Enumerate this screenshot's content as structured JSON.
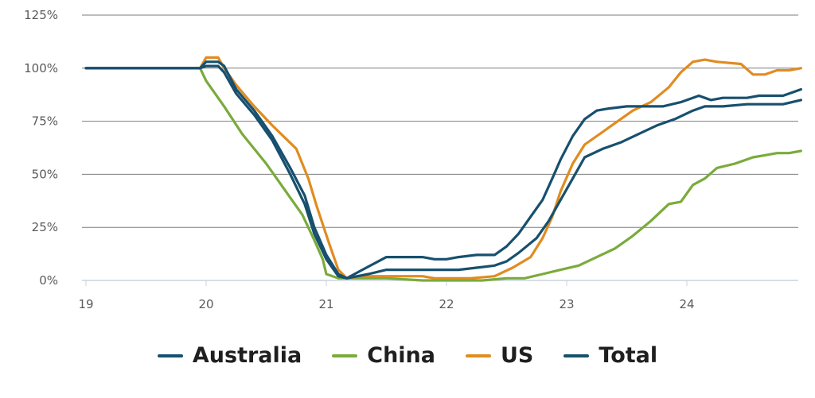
{
  "chart_data": {
    "type": "line",
    "title": "",
    "xlabel": "",
    "ylabel": "",
    "xlim": [
      19,
      24.95
    ],
    "ylim": [
      0,
      125
    ],
    "x_ticks": [
      "19",
      "20",
      "21",
      "22",
      "23",
      "24"
    ],
    "y_ticks": [
      "0%",
      "25%",
      "50%",
      "75%",
      "100%",
      "125%"
    ],
    "grid": "horizontal",
    "legend_position": "bottom",
    "series": [
      {
        "name": "Australia",
        "color": "#17506e",
        "points": [
          [
            19,
            100
          ],
          [
            19.5,
            100
          ],
          [
            19.95,
            100
          ],
          [
            20.0,
            103
          ],
          [
            20.1,
            103
          ],
          [
            20.15,
            101
          ],
          [
            20.25,
            90
          ],
          [
            20.4,
            80
          ],
          [
            20.55,
            68
          ],
          [
            20.7,
            53
          ],
          [
            20.82,
            40
          ],
          [
            20.9,
            25
          ],
          [
            21.0,
            12
          ],
          [
            21.1,
            3
          ],
          [
            21.17,
            1
          ],
          [
            21.3,
            5
          ],
          [
            21.5,
            11
          ],
          [
            21.6,
            11
          ],
          [
            21.8,
            11
          ],
          [
            21.9,
            10
          ],
          [
            22.0,
            10
          ],
          [
            22.1,
            11
          ],
          [
            22.25,
            12
          ],
          [
            22.4,
            12
          ],
          [
            22.5,
            16
          ],
          [
            22.6,
            22
          ],
          [
            22.7,
            30
          ],
          [
            22.8,
            38
          ],
          [
            22.88,
            48
          ],
          [
            22.95,
            57
          ],
          [
            23.05,
            68
          ],
          [
            23.15,
            76
          ],
          [
            23.25,
            80
          ],
          [
            23.35,
            81
          ],
          [
            23.5,
            82
          ],
          [
            23.8,
            82
          ],
          [
            23.95,
            84
          ],
          [
            24.1,
            87
          ],
          [
            24.2,
            85
          ],
          [
            24.3,
            86
          ],
          [
            24.5,
            86
          ],
          [
            24.6,
            87
          ],
          [
            24.8,
            87
          ],
          [
            24.95,
            90
          ]
        ]
      },
      {
        "name": "China",
        "color": "#7aab3b",
        "points": [
          [
            19,
            100
          ],
          [
            19.5,
            100
          ],
          [
            19.95,
            100
          ],
          [
            20.0,
            94
          ],
          [
            20.15,
            82
          ],
          [
            20.3,
            69
          ],
          [
            20.5,
            55
          ],
          [
            20.65,
            43
          ],
          [
            20.8,
            31
          ],
          [
            20.9,
            19
          ],
          [
            20.97,
            10
          ],
          [
            21.0,
            3
          ],
          [
            21.1,
            1
          ],
          [
            21.3,
            1
          ],
          [
            21.5,
            1
          ],
          [
            21.8,
            0
          ],
          [
            22.0,
            0
          ],
          [
            22.3,
            0
          ],
          [
            22.5,
            1
          ],
          [
            22.65,
            1
          ],
          [
            22.8,
            3
          ],
          [
            22.95,
            5
          ],
          [
            23.1,
            7
          ],
          [
            23.25,
            11
          ],
          [
            23.4,
            15
          ],
          [
            23.55,
            21
          ],
          [
            23.7,
            28
          ],
          [
            23.85,
            36
          ],
          [
            23.95,
            37
          ],
          [
            24.05,
            45
          ],
          [
            24.15,
            48
          ],
          [
            24.25,
            53
          ],
          [
            24.4,
            55
          ],
          [
            24.55,
            58
          ],
          [
            24.65,
            59
          ],
          [
            24.75,
            60
          ],
          [
            24.85,
            60
          ],
          [
            24.95,
            61
          ]
        ]
      },
      {
        "name": "US",
        "color": "#e08c21",
        "points": [
          [
            19,
            100
          ],
          [
            19.5,
            100
          ],
          [
            19.95,
            100
          ],
          [
            20.0,
            105
          ],
          [
            20.1,
            105
          ],
          [
            20.15,
            100
          ],
          [
            20.25,
            92
          ],
          [
            20.4,
            82
          ],
          [
            20.55,
            73
          ],
          [
            20.75,
            62
          ],
          [
            20.85,
            48
          ],
          [
            20.92,
            35
          ],
          [
            21.02,
            18
          ],
          [
            21.1,
            5
          ],
          [
            21.17,
            1
          ],
          [
            21.3,
            2
          ],
          [
            21.5,
            2
          ],
          [
            21.8,
            2
          ],
          [
            21.9,
            1
          ],
          [
            22.2,
            1
          ],
          [
            22.4,
            2
          ],
          [
            22.55,
            6
          ],
          [
            22.7,
            11
          ],
          [
            22.8,
            20
          ],
          [
            22.88,
            30
          ],
          [
            22.95,
            42
          ],
          [
            23.05,
            55
          ],
          [
            23.15,
            64
          ],
          [
            23.3,
            70
          ],
          [
            23.45,
            76
          ],
          [
            23.55,
            80
          ],
          [
            23.7,
            84
          ],
          [
            23.85,
            91
          ],
          [
            23.95,
            98
          ],
          [
            24.05,
            103
          ],
          [
            24.15,
            104
          ],
          [
            24.25,
            103
          ],
          [
            24.45,
            102
          ],
          [
            24.55,
            97
          ],
          [
            24.65,
            97
          ],
          [
            24.75,
            99
          ],
          [
            24.85,
            99
          ],
          [
            24.95,
            100
          ]
        ]
      },
      {
        "name": "Total",
        "color": "#17506e",
        "points": [
          [
            19,
            100
          ],
          [
            19.5,
            100
          ],
          [
            19.95,
            100
          ],
          [
            20.0,
            101
          ],
          [
            20.1,
            101
          ],
          [
            20.15,
            98
          ],
          [
            20.25,
            88
          ],
          [
            20.4,
            78
          ],
          [
            20.55,
            66
          ],
          [
            20.7,
            50
          ],
          [
            20.82,
            36
          ],
          [
            20.9,
            22
          ],
          [
            21.0,
            10
          ],
          [
            21.1,
            2
          ],
          [
            21.17,
            1
          ],
          [
            21.35,
            3
          ],
          [
            21.5,
            5
          ],
          [
            21.8,
            5
          ],
          [
            22.1,
            5
          ],
          [
            22.25,
            6
          ],
          [
            22.4,
            7
          ],
          [
            22.5,
            9
          ],
          [
            22.6,
            13
          ],
          [
            22.75,
            20
          ],
          [
            22.85,
            28
          ],
          [
            22.95,
            38
          ],
          [
            23.05,
            48
          ],
          [
            23.15,
            58
          ],
          [
            23.3,
            62
          ],
          [
            23.45,
            65
          ],
          [
            23.6,
            69
          ],
          [
            23.75,
            73
          ],
          [
            23.9,
            76
          ],
          [
            24.05,
            80
          ],
          [
            24.15,
            82
          ],
          [
            24.3,
            82
          ],
          [
            24.5,
            83
          ],
          [
            24.8,
            83
          ],
          [
            24.95,
            85
          ]
        ]
      }
    ]
  }
}
